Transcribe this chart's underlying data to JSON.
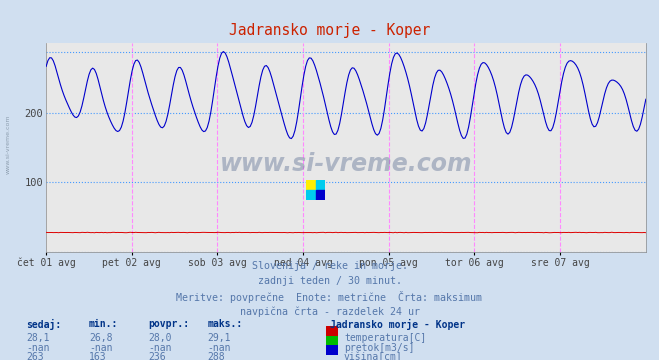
{
  "title": "Jadransko morje - Koper",
  "bg_color": "#d0dff0",
  "plot_bg_color": "#e8e8e8",
  "line_color_visina": "#0000cc",
  "line_color_temp": "#dd0000",
  "grid_color_h": "#ffaaaa",
  "grid_color_v": "#ff88ff",
  "dotted_line_color": "#4499ff",
  "ylim": [
    0,
    300
  ],
  "yticks": [
    100,
    200
  ],
  "xlabel_dates": [
    "čet 01 avg",
    "pet 02 avg",
    "sob 03 avg",
    "ned 04 avg",
    "pon 05 avg",
    "tor 06 avg",
    "sre 07 avg"
  ],
  "n_points": 336,
  "subtitle_lines": [
    "Slovenija / reke in morje.",
    "zadnji teden / 30 minut.",
    "Meritve: povprečne  Enote: metrične  Črta: maksimum",
    "navpična črta - razdelek 24 ur"
  ],
  "table_headers": [
    "sedaj:",
    "min.:",
    "povpr.:",
    "maks.:"
  ],
  "table_rows": [
    [
      "28,1",
      "26,8",
      "28,0",
      "29,1",
      "#cc0000",
      "temperatura[C]"
    ],
    [
      "-nan",
      "-nan",
      "-nan",
      "-nan",
      "#00bb00",
      "pretok[m3/s]"
    ],
    [
      "263",
      "163",
      "236",
      "288",
      "#0000cc",
      "višina[cm]"
    ]
  ],
  "legend_title": "Jadransko morje - Koper",
  "max_line_value": 288,
  "watermark": "www.si-vreme.com"
}
